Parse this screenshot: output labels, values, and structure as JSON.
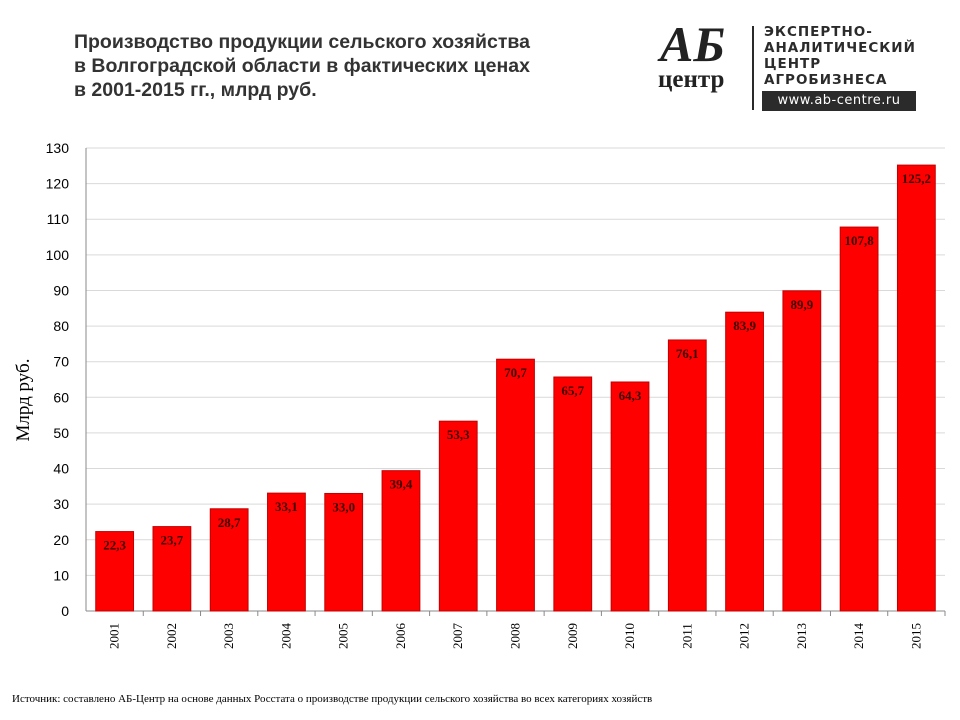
{
  "title_lines": [
    "Производство продукции сельского хозяйства",
    "в Волгоградской области в фактических ценах",
    "в 2001-2015 гг., млрд руб."
  ],
  "logo": {
    "mark_top": "АБ",
    "mark_bottom": "центр",
    "text_lines": [
      "ЭКСПЕРТНО-",
      "АНАЛИТИЧЕСКИЙ",
      "ЦЕНТР",
      "АГРОБИЗНЕСА"
    ],
    "url": "www.ab-centre.ru"
  },
  "source": "Источник: составлено АБ-Центр на основе данных Росстата о производстве продукции сельского хозяйства во всех категориях хозяйств",
  "chart_data": {
    "type": "bar",
    "title": "Производство продукции сельского хозяйства в Волгоградской области в фактических ценах в 2001-2015 гг., млрд руб.",
    "ylabel": "Млрд руб.",
    "xlabel": "",
    "categories": [
      "2001",
      "2002",
      "2003",
      "2004",
      "2005",
      "2006",
      "2007",
      "2008",
      "2009",
      "2010",
      "2011",
      "2012",
      "2013",
      "2014",
      "2015"
    ],
    "values": [
      22.3,
      23.7,
      28.7,
      33.1,
      33.0,
      39.4,
      53.3,
      70.7,
      65.7,
      64.3,
      76.1,
      83.9,
      89.9,
      107.8,
      125.2
    ],
    "value_labels": [
      "22,3",
      "23,7",
      "28,7",
      "33,1",
      "33,0",
      "39,4",
      "53,3",
      "70,7",
      "65,7",
      "64,3",
      "76,1",
      "83,9",
      "89,9",
      "107,8",
      "125,2"
    ],
    "ylim": [
      0,
      130
    ],
    "yticks": [
      0,
      10,
      20,
      30,
      40,
      50,
      60,
      70,
      80,
      90,
      100,
      110,
      120,
      130
    ],
    "grid": true,
    "bar_color": "#ff0000",
    "bar_edge_color": "#c00000"
  }
}
